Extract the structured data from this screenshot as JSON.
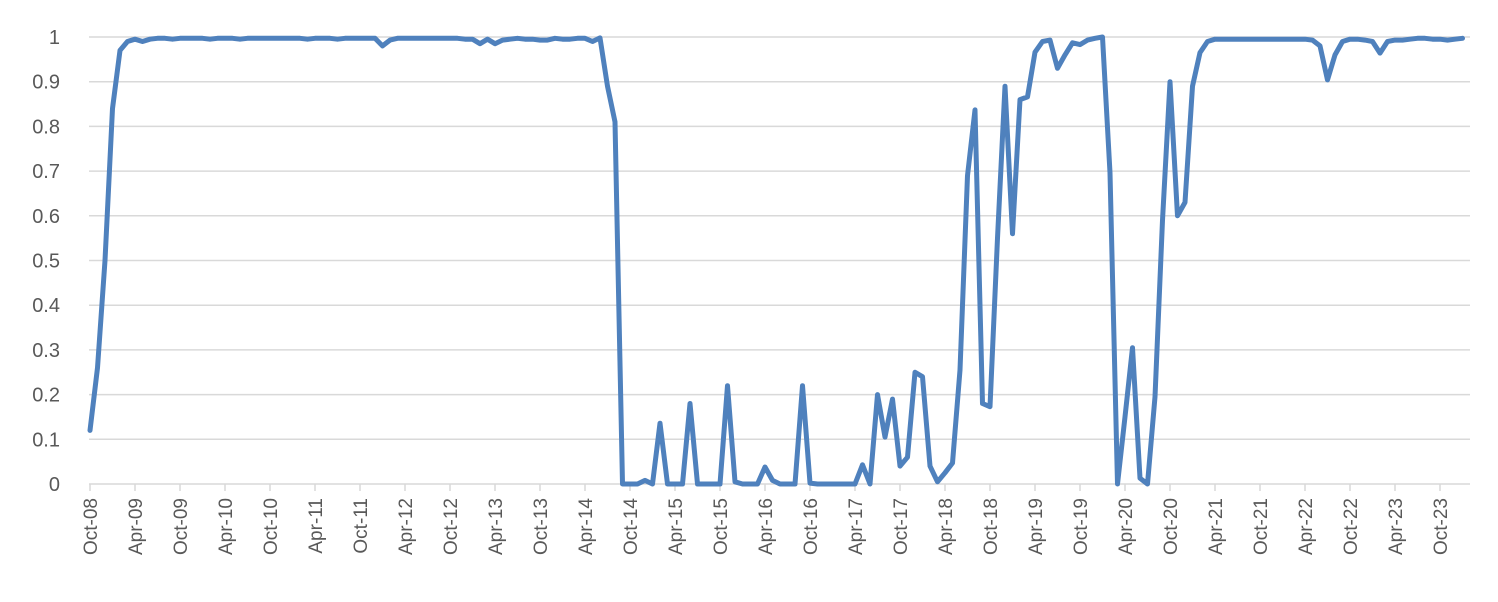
{
  "chart_data": {
    "type": "line",
    "title": "",
    "xlabel": "",
    "ylabel": "",
    "ylim": [
      0,
      1
    ],
    "yticks": [
      "0",
      "0.1",
      "0.2",
      "0.3",
      "0.4",
      "0.5",
      "0.6",
      "0.7",
      "0.8",
      "0.9",
      "1"
    ],
    "xtick_labels": [
      "Oct-08",
      "Apr-09",
      "Oct-09",
      "Apr-10",
      "Oct-10",
      "Apr-11",
      "Oct-11",
      "Apr-12",
      "Oct-12",
      "Apr-13",
      "Oct-13",
      "Apr-14",
      "Oct-14",
      "Apr-15",
      "Oct-15",
      "Apr-16",
      "Oct-16",
      "Apr-17",
      "Oct-17",
      "Apr-18",
      "Oct-18",
      "Apr-19",
      "Oct-19",
      "Apr-20",
      "Oct-20",
      "Apr-21",
      "Oct-21",
      "Apr-22",
      "Oct-22",
      "Apr-23",
      "Oct-23"
    ],
    "grid": true,
    "legend": "none",
    "line_color": "#4f81bd",
    "series": [
      {
        "x": [
          "Oct-08",
          "Nov-08",
          "Dec-08",
          "Jan-09",
          "Feb-09",
          "Mar-09",
          "Apr-09",
          "May-09",
          "Jun-09",
          "Jul-09",
          "Aug-09",
          "Sep-09",
          "Oct-09",
          "Nov-09",
          "Dec-09",
          "Jan-10",
          "Feb-10",
          "Mar-10",
          "Apr-10",
          "May-10",
          "Jun-10",
          "Jul-10",
          "Aug-10",
          "Sep-10",
          "Oct-10",
          "Nov-10",
          "Dec-10",
          "Jan-11",
          "Feb-11",
          "Mar-11",
          "Apr-11",
          "May-11",
          "Jun-11",
          "Jul-11",
          "Aug-11",
          "Sep-11",
          "Oct-11",
          "Nov-11",
          "Dec-11",
          "Jan-12",
          "Feb-12",
          "Mar-12",
          "Apr-12",
          "May-12",
          "Jun-12",
          "Jul-12",
          "Aug-12",
          "Sep-12",
          "Oct-12",
          "Nov-12",
          "Dec-12",
          "Jan-13",
          "Feb-13",
          "Mar-13",
          "Apr-13",
          "May-13",
          "Jun-13",
          "Jul-13",
          "Aug-13",
          "Sep-13",
          "Oct-13",
          "Nov-13",
          "Dec-13",
          "Jan-14",
          "Feb-14",
          "Mar-14",
          "Apr-14",
          "May-14",
          "Jun-14",
          "Jul-14",
          "Aug-14",
          "Sep-14",
          "Oct-14",
          "Nov-14",
          "Dec-14",
          "Jan-15",
          "Feb-15",
          "Mar-15",
          "Apr-15",
          "May-15",
          "Jun-15",
          "Jul-15",
          "Aug-15",
          "Sep-15",
          "Oct-15",
          "Nov-15",
          "Dec-15",
          "Jan-16",
          "Feb-16",
          "Mar-16",
          "Apr-16",
          "May-16",
          "Jun-16",
          "Jul-16",
          "Aug-16",
          "Sep-16",
          "Oct-16",
          "Nov-16",
          "Dec-16",
          "Jan-17",
          "Feb-17",
          "Mar-17",
          "Apr-17",
          "May-17",
          "Jun-17",
          "Jul-17",
          "Aug-17",
          "Sep-17",
          "Oct-17",
          "Nov-17",
          "Dec-17",
          "Jan-18",
          "Feb-18",
          "Mar-18",
          "Apr-18",
          "May-18",
          "Jun-18",
          "Jul-18",
          "Aug-18",
          "Sep-18",
          "Oct-18",
          "Nov-18",
          "Dec-18",
          "Jan-19",
          "Feb-19",
          "Mar-19",
          "Apr-19",
          "May-19",
          "Jun-19",
          "Jul-19",
          "Aug-19",
          "Sep-19",
          "Oct-19",
          "Nov-19",
          "Dec-19",
          "Jan-20",
          "Feb-20",
          "Mar-20",
          "Apr-20",
          "May-20",
          "Jun-20",
          "Jul-20",
          "Aug-20",
          "Sep-20",
          "Oct-20",
          "Nov-20",
          "Dec-20",
          "Jan-21",
          "Feb-21",
          "Mar-21",
          "Apr-21",
          "May-21",
          "Jun-21",
          "Jul-21",
          "Aug-21",
          "Sep-21",
          "Oct-21",
          "Nov-21",
          "Dec-21",
          "Jan-22",
          "Feb-22",
          "Mar-22",
          "Apr-22",
          "May-22",
          "Jun-22",
          "Jul-22",
          "Aug-22",
          "Sep-22",
          "Oct-22",
          "Nov-22",
          "Dec-22",
          "Jan-23",
          "Feb-23",
          "Mar-23",
          "Apr-23",
          "May-23",
          "Jun-23",
          "Jul-23",
          "Aug-23",
          "Sep-23",
          "Oct-23",
          "Nov-23",
          "Dec-23",
          "Jan-24"
        ],
        "values": [
          0.12,
          0.26,
          0.5,
          0.84,
          0.97,
          0.99,
          0.995,
          0.99,
          0.995,
          0.997,
          0.997,
          0.995,
          0.997,
          0.997,
          0.997,
          0.997,
          0.995,
          0.997,
          0.997,
          0.997,
          0.995,
          0.997,
          0.997,
          0.997,
          0.997,
          0.997,
          0.997,
          0.997,
          0.997,
          0.995,
          0.997,
          0.997,
          0.997,
          0.995,
          0.997,
          0.997,
          0.997,
          0.997,
          0.997,
          0.98,
          0.993,
          0.997,
          0.997,
          0.997,
          0.997,
          0.997,
          0.997,
          0.997,
          0.997,
          0.997,
          0.995,
          0.995,
          0.985,
          0.995,
          0.985,
          0.993,
          0.995,
          0.997,
          0.995,
          0.995,
          0.993,
          0.993,
          0.997,
          0.995,
          0.995,
          0.997,
          0.997,
          0.99,
          0.998,
          0.89,
          0.81,
          0,
          0,
          0,
          0.008,
          0,
          0.136,
          0,
          0,
          0,
          0.18,
          0,
          0,
          0,
          0,
          0.22,
          0.005,
          0,
          0,
          0,
          0.038,
          0.008,
          0,
          0,
          0,
          0.22,
          0.002,
          0,
          0,
          0,
          0,
          0,
          0,
          0.043,
          0,
          0.2,
          0.105,
          0.19,
          0.04,
          0.06,
          0.25,
          0.24,
          0.04,
          0.005,
          0.025,
          0.047,
          0.255,
          0.69,
          0.837,
          0.18,
          0.173,
          0.55,
          0.89,
          0.56,
          0.86,
          0.866,
          0.966,
          0.99,
          0.993,
          0.93,
          0.96,
          0.987,
          0.983,
          0.993,
          0.997,
          1.0,
          0.696,
          0,
          0.15,
          0.305,
          0.013,
          0,
          0.195,
          0.59,
          0.9,
          0.6,
          0.63,
          0.89,
          0.965,
          0.99,
          0.995,
          0.995,
          0.995,
          0.995,
          0.995,
          0.995,
          0.995,
          0.995,
          0.995,
          0.995,
          0.995,
          0.995,
          0.995,
          0.993,
          0.98,
          0.904,
          0.96,
          0.99,
          0.995,
          0.995,
          0.993,
          0.99,
          0.964,
          0.99,
          0.993,
          0.993,
          0.995,
          0.997,
          0.997,
          0.995,
          0.995,
          0.993,
          0.995,
          0.997
        ]
      }
    ]
  }
}
